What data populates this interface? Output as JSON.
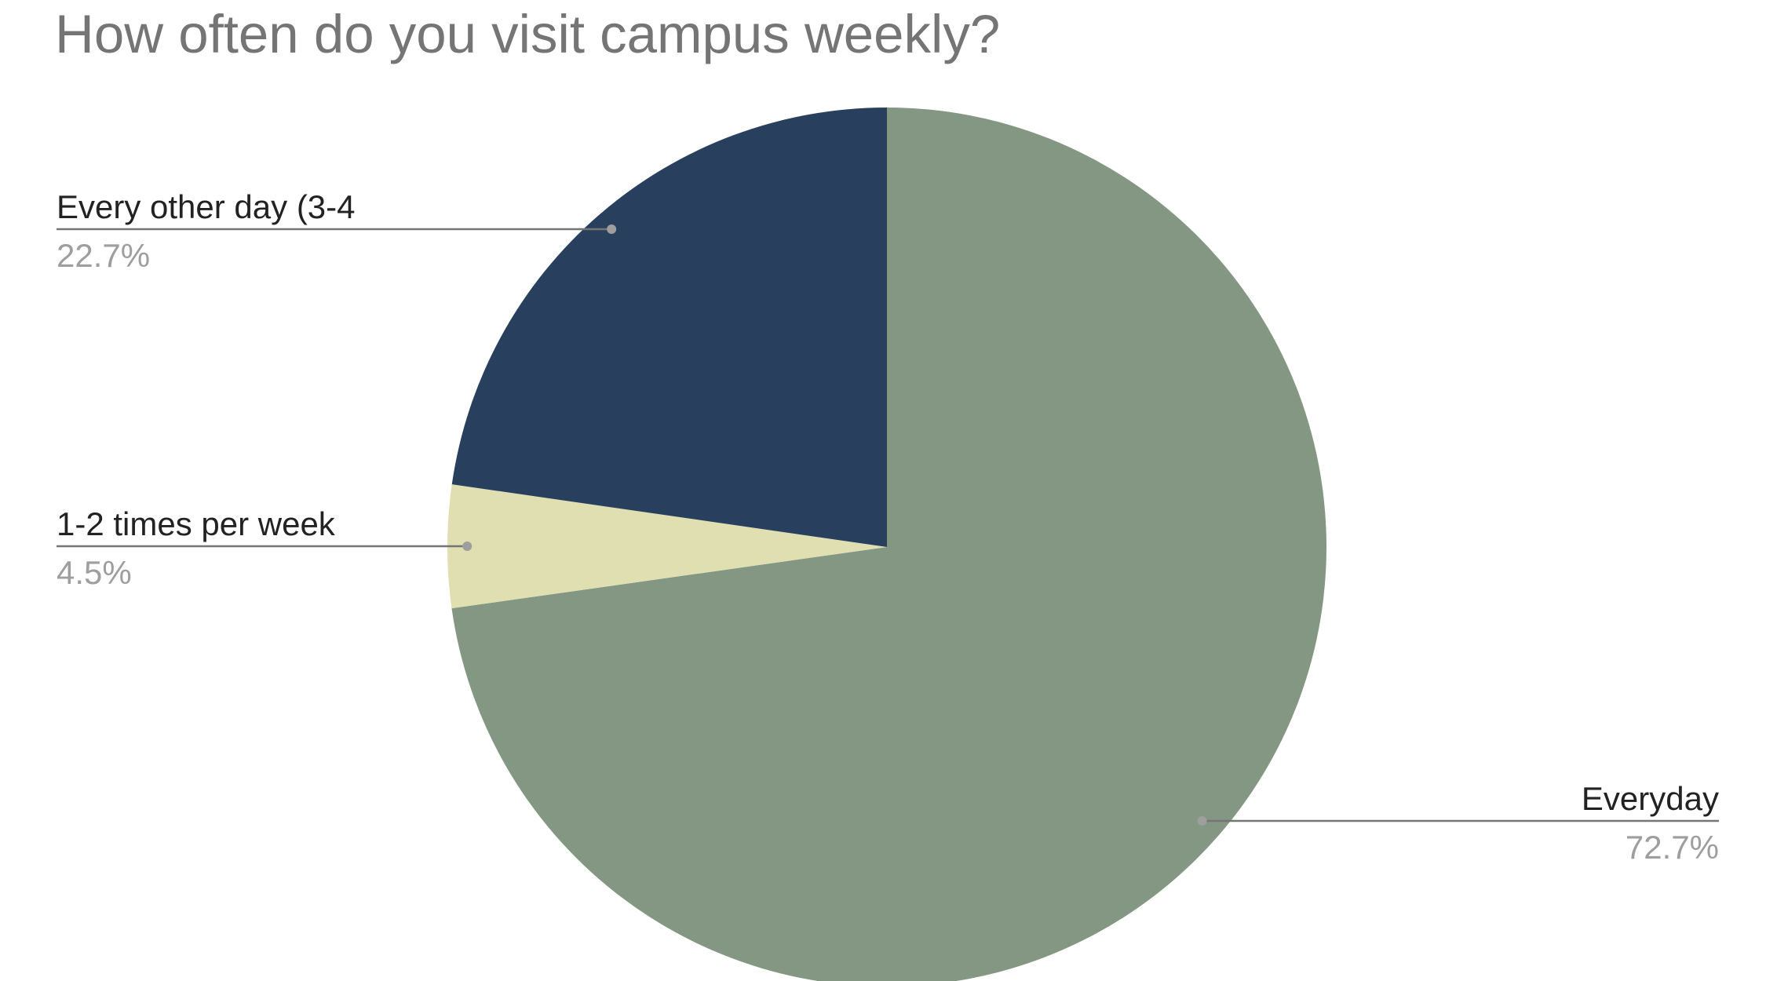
{
  "chart_data": {
    "type": "pie",
    "title": "How often do you visit campus weekly?",
    "slices": [
      {
        "label": "Everyday",
        "percent_label": "72.7%",
        "value": 72.7,
        "color": "#849783"
      },
      {
        "label": "1-2 times per week",
        "percent_label": "4.5%",
        "value": 4.5,
        "color": "#dfdfb2"
      },
      {
        "label": "Every other day (3-4",
        "percent_label": "22.7%",
        "value": 22.7,
        "color": "#283f5e"
      }
    ],
    "legend": "none",
    "label_style": "leader-lines"
  }
}
